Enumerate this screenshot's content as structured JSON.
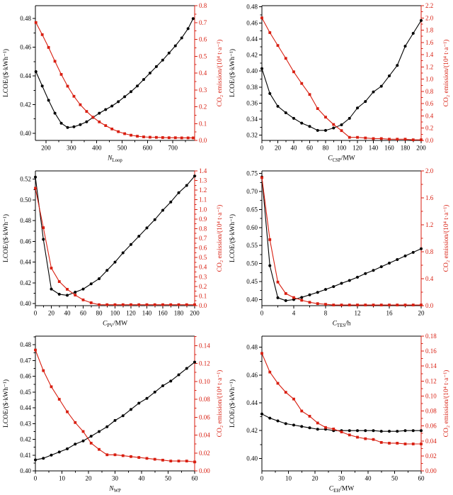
{
  "page": {
    "background": "#ffffff"
  },
  "colors": {
    "lcoe": "#000000",
    "co2": "#d81e10",
    "spine": "#000000"
  },
  "chart_data": [
    {
      "type": "line",
      "title": "",
      "xlabel": {
        "var": "N",
        "sub": "Loop",
        "unit": ""
      },
      "x_axis": {
        "range": [
          158,
          786
        ],
        "tick_values": [
          200,
          300,
          400,
          500,
          600,
          700
        ],
        "tick_labels": [
          "200",
          "300",
          "400",
          "500",
          "600",
          "700"
        ]
      },
      "left_axis": {
        "label": "LCOE/($·kWh⁻¹)",
        "range": [
          0.395,
          0.489
        ],
        "tick_values": [
          0.4,
          0.42,
          0.44,
          0.46,
          0.48
        ],
        "tick_labels": [
          "0.40",
          "0.42",
          "0.44",
          "0.46",
          "0.48"
        ]
      },
      "right_axis": {
        "label": "CO₂ emission/(10⁴ t·a⁻¹)",
        "range": [
          0,
          0.8
        ],
        "tick_values": [
          0,
          0.1,
          0.2,
          0.3,
          0.4,
          0.5,
          0.6,
          0.7,
          0.8
        ],
        "tick_labels": [
          "0.0",
          "0.1",
          "0.2",
          "0.3",
          "0.4",
          "0.5",
          "0.6",
          "0.7",
          "0.8"
        ]
      },
      "x": [
        160,
        185,
        210,
        235,
        260,
        285,
        310,
        335,
        360,
        385,
        410,
        435,
        460,
        485,
        510,
        535,
        560,
        585,
        610,
        635,
        660,
        685,
        710,
        735,
        760,
        780
      ],
      "series": [
        {
          "name": "LCOE",
          "axis": "left",
          "marker": "circle",
          "values": [
            0.443,
            0.433,
            0.423,
            0.414,
            0.407,
            0.404,
            0.4045,
            0.406,
            0.408,
            0.411,
            0.414,
            0.4165,
            0.419,
            0.422,
            0.4255,
            0.429,
            0.433,
            0.4375,
            0.442,
            0.4465,
            0.451,
            0.456,
            0.461,
            0.4665,
            0.473,
            0.48
          ]
        },
        {
          "name": "CO₂ emission",
          "axis": "right",
          "marker": "square",
          "values": [
            0.7,
            0.628,
            0.552,
            0.47,
            0.392,
            0.322,
            0.262,
            0.212,
            0.172,
            0.138,
            0.11,
            0.088,
            0.068,
            0.052,
            0.04,
            0.031,
            0.025,
            0.021,
            0.019,
            0.018,
            0.017,
            0.016,
            0.016,
            0.015,
            0.015,
            0.015
          ]
        }
      ]
    },
    {
      "type": "line",
      "title": "",
      "xlabel": {
        "var": "C",
        "sub": "CSP",
        "unit": "/MW"
      },
      "x_axis": {
        "range": [
          0,
          200
        ],
        "tick_values": [
          0,
          20,
          40,
          60,
          80,
          100,
          120,
          140,
          160,
          180,
          200
        ],
        "tick_labels": [
          "0",
          "20",
          "40",
          "60",
          "80",
          "100",
          "120",
          "140",
          "160",
          "180",
          "200"
        ]
      },
      "left_axis": {
        "label": "LCOE/($·kWh⁻¹)",
        "range": [
          0.3135,
          0.4815
        ],
        "tick_values": [
          0.32,
          0.34,
          0.36,
          0.38,
          0.4,
          0.42,
          0.44,
          0.46,
          0.48
        ],
        "tick_labels": [
          "0.32",
          "0.34",
          "0.36",
          "0.38",
          "0.40",
          "0.42",
          "0.44",
          "0.46",
          "0.48"
        ]
      },
      "right_axis": {
        "label": "CO₂ emission/(10⁴ t·a⁻¹)",
        "range": [
          0,
          2.2
        ],
        "tick_values": [
          0,
          0.2,
          0.4,
          0.6,
          0.8,
          1.0,
          1.2,
          1.4,
          1.6,
          1.8,
          2.0,
          2.2
        ],
        "tick_labels": [
          "0.0",
          "0.2",
          "0.4",
          "0.6",
          "0.8",
          "1.0",
          "1.2",
          "1.4",
          "1.6",
          "1.8",
          "2.0",
          "2.2"
        ]
      },
      "x": [
        0,
        10,
        20,
        30,
        40,
        50,
        60,
        70,
        80,
        90,
        100,
        110,
        120,
        130,
        140,
        150,
        160,
        170,
        180,
        190,
        200
      ],
      "series": [
        {
          "name": "LCOE",
          "axis": "left",
          "marker": "circle",
          "values": [
            0.403,
            0.372,
            0.356,
            0.348,
            0.341,
            0.335,
            0.331,
            0.326,
            0.326,
            0.329,
            0.333,
            0.341,
            0.354,
            0.362,
            0.374,
            0.381,
            0.394,
            0.407,
            0.431,
            0.447,
            0.463
          ]
        },
        {
          "name": "CO₂ emission",
          "axis": "right",
          "marker": "square",
          "values": [
            2.0,
            1.76,
            1.55,
            1.34,
            1.12,
            0.93,
            0.75,
            0.52,
            0.38,
            0.26,
            0.16,
            0.05,
            0.05,
            0.04,
            0.03,
            0.03,
            0.02,
            0.02,
            0.02,
            0.01,
            0.01
          ]
        }
      ]
    },
    {
      "type": "line",
      "title": "",
      "xlabel": {
        "var": "C",
        "sub": "PV",
        "unit": "/MW"
      },
      "x_axis": {
        "range": [
          0,
          200
        ],
        "tick_values": [
          0,
          20,
          40,
          60,
          80,
          100,
          120,
          140,
          160,
          180,
          200
        ],
        "tick_labels": [
          "0",
          "20",
          "40",
          "60",
          "80",
          "100",
          "120",
          "140",
          "160",
          "180",
          "200"
        ]
      },
      "left_axis": {
        "label": "LCOE/($·kWh⁻¹)",
        "range": [
          0.398,
          0.528
        ],
        "tick_values": [
          0.4,
          0.42,
          0.44,
          0.46,
          0.48,
          0.5,
          0.52
        ],
        "tick_labels": [
          "0.40",
          "0.42",
          "0.44",
          "0.46",
          "0.48",
          "0.50",
          "0.52"
        ]
      },
      "right_axis": {
        "label": "CO₂ emission/(10⁴ t·a⁻¹)",
        "range": [
          0,
          1.4
        ],
        "tick_values": [
          0,
          0.1,
          0.2,
          0.3,
          0.4,
          0.5,
          0.6,
          0.7,
          0.8,
          0.9,
          1.0,
          1.1,
          1.2,
          1.3,
          1.4
        ],
        "tick_labels": [
          "0.0",
          "0.1",
          "0.2",
          "0.3",
          "0.4",
          "0.5",
          "0.6",
          "0.7",
          "0.8",
          "0.9",
          "1.0",
          "1.1",
          "1.2",
          "1.3",
          "1.4"
        ]
      },
      "x": [
        0,
        10,
        20,
        30,
        40,
        50,
        60,
        70,
        80,
        90,
        100,
        110,
        120,
        130,
        140,
        150,
        160,
        170,
        180,
        190,
        200
      ],
      "series": [
        {
          "name": "LCOE",
          "axis": "left",
          "marker": "circle",
          "values": [
            0.522,
            0.462,
            0.414,
            0.409,
            0.408,
            0.411,
            0.414,
            0.419,
            0.424,
            0.432,
            0.44,
            0.449,
            0.457,
            0.465,
            0.473,
            0.481,
            0.49,
            0.498,
            0.507,
            0.514,
            0.523
          ]
        },
        {
          "name": "CO₂ emission",
          "axis": "right",
          "marker": "square",
          "values": [
            1.22,
            0.81,
            0.39,
            0.25,
            0.17,
            0.11,
            0.06,
            0.03,
            0.01,
            0.01,
            0.01,
            0.01,
            0.01,
            0.01,
            0.01,
            0.01,
            0.01,
            0.01,
            0.01,
            0.01,
            0.01
          ]
        }
      ]
    },
    {
      "type": "line",
      "title": "",
      "xlabel": {
        "var": "C",
        "sub": "TES",
        "unit": "/h"
      },
      "x_axis": {
        "range": [
          0,
          20
        ],
        "tick_values": [
          0,
          4,
          8,
          12,
          16,
          20
        ],
        "tick_labels": [
          "0",
          "4",
          "8",
          "12",
          "16",
          "20"
        ]
      },
      "left_axis": {
        "label": "LCOE/($·kWh⁻¹)",
        "range": [
          0.383,
          0.757
        ],
        "tick_values": [
          0.4,
          0.45,
          0.5,
          0.55,
          0.6,
          0.65,
          0.7,
          0.75
        ],
        "tick_labels": [
          "0.40",
          "0.45",
          "0.50",
          "0.55",
          "0.60",
          "0.65",
          "0.70",
          "0.75"
        ]
      },
      "right_axis": {
        "label": "CO₂ emission/(10⁴ t·a⁻¹)",
        "range": [
          0,
          2.0
        ],
        "tick_values": [
          0,
          0.4,
          0.8,
          1.2,
          1.6,
          2.0
        ],
        "tick_labels": [
          "0.0",
          "0.4",
          "0.8",
          "1.2",
          "1.6",
          "2.0"
        ]
      },
      "x": [
        0,
        1,
        2,
        3,
        4,
        5,
        6,
        7,
        8,
        9,
        10,
        11,
        12,
        13,
        14,
        15,
        16,
        17,
        18,
        19,
        20
      ],
      "series": [
        {
          "name": "LCOE",
          "axis": "left",
          "marker": "circle",
          "values": [
            0.74,
            0.494,
            0.405,
            0.397,
            0.4,
            0.406,
            0.413,
            0.42,
            0.428,
            0.436,
            0.445,
            0.453,
            0.462,
            0.472,
            0.481,
            0.491,
            0.501,
            0.511,
            0.521,
            0.531,
            0.541
          ]
        },
        {
          "name": "CO₂ emission",
          "axis": "right",
          "marker": "square",
          "values": [
            1.9,
            0.98,
            0.35,
            0.18,
            0.12,
            0.08,
            0.05,
            0.03,
            0.02,
            0.01,
            0.01,
            0.01,
            0.01,
            0.01,
            0.01,
            0.01,
            0.01,
            0.01,
            0.01,
            0.01,
            0.01
          ]
        }
      ]
    },
    {
      "type": "line",
      "title": "",
      "xlabel": {
        "var": "N",
        "sub": "WP",
        "unit": ""
      },
      "x_axis": {
        "range": [
          0,
          60
        ],
        "tick_values": [
          0,
          10,
          20,
          30,
          40,
          50,
          60
        ],
        "tick_labels": [
          "0",
          "10",
          "20",
          "30",
          "40",
          "50",
          "60"
        ]
      },
      "left_axis": {
        "label": "LCOE/($·kWh⁻¹)",
        "range": [
          0.4,
          0.4855
        ],
        "tick_values": [
          0.4,
          0.41,
          0.42,
          0.43,
          0.44,
          0.45,
          0.46,
          0.47,
          0.48
        ],
        "tick_labels": [
          "0.40",
          "0.41",
          "0.42",
          "0.43",
          "0.44",
          "0.45",
          "0.46",
          "0.47",
          "0.48"
        ]
      },
      "right_axis": {
        "label": "CO₂ emission/(10⁴ t·a⁻¹)",
        "range": [
          0,
          0.1505
        ],
        "tick_values": [
          0,
          0.02,
          0.04,
          0.06,
          0.08,
          0.1,
          0.12,
          0.14
        ],
        "tick_labels": [
          "0.00",
          "0.02",
          "0.04",
          "0.06",
          "0.08",
          "0.10",
          "0.12",
          "0.14"
        ]
      },
      "x": [
        0,
        3,
        6,
        9,
        12,
        15,
        18,
        21,
        24,
        27,
        30,
        33,
        36,
        39,
        42,
        45,
        48,
        51,
        54,
        57,
        60
      ],
      "series": [
        {
          "name": "LCOE",
          "axis": "left",
          "marker": "circle",
          "values": [
            0.407,
            0.408,
            0.41,
            0.412,
            0.414,
            0.417,
            0.419,
            0.422,
            0.425,
            0.428,
            0.432,
            0.435,
            0.439,
            0.443,
            0.446,
            0.45,
            0.454,
            0.457,
            0.461,
            0.465,
            0.469
          ]
        },
        {
          "name": "CO₂ emission",
          "axis": "right",
          "marker": "square",
          "values": [
            0.135,
            0.112,
            0.094,
            0.08,
            0.066,
            0.054,
            0.044,
            0.031,
            0.024,
            0.018,
            0.018,
            0.017,
            0.016,
            0.015,
            0.014,
            0.013,
            0.012,
            0.011,
            0.011,
            0.011,
            0.01
          ]
        }
      ]
    },
    {
      "type": "line",
      "title": "",
      "xlabel": {
        "var": "C",
        "sub": "EH",
        "unit": "/MW"
      },
      "x_axis": {
        "range": [
          0,
          60
        ],
        "tick_values": [
          0,
          10,
          20,
          30,
          40,
          50,
          60
        ],
        "tick_labels": [
          "0",
          "10",
          "20",
          "30",
          "40",
          "50",
          "60"
        ]
      },
      "left_axis": {
        "label": "LCOE/($·kWh⁻¹)",
        "range": [
          0.391,
          0.488
        ],
        "tick_values": [
          0.4,
          0.42,
          0.44,
          0.46,
          0.48
        ],
        "tick_labels": [
          "0.40",
          "0.42",
          "0.44",
          "0.46",
          "0.48"
        ]
      },
      "right_axis": {
        "label": "CO₂ emission/(10⁴ t·a⁻¹)",
        "range": [
          0,
          0.18
        ],
        "tick_values": [
          0,
          0.02,
          0.04,
          0.06,
          0.08,
          0.1,
          0.12,
          0.14,
          0.16,
          0.18
        ],
        "tick_labels": [
          "0.00",
          "0.02",
          "0.04",
          "0.06",
          "0.08",
          "0.10",
          "0.12",
          "0.14",
          "0.16",
          "0.18"
        ]
      },
      "x": [
        0,
        3,
        6,
        9,
        12,
        15,
        18,
        21,
        24,
        27,
        30,
        33,
        36,
        39,
        42,
        45,
        48,
        51,
        54,
        57,
        60
      ],
      "series": [
        {
          "name": "LCOE",
          "axis": "left",
          "marker": "circle",
          "values": [
            0.432,
            0.429,
            0.427,
            0.425,
            0.424,
            0.423,
            0.422,
            0.421,
            0.421,
            0.42,
            0.42,
            0.42,
            0.42,
            0.42,
            0.42,
            0.4195,
            0.4195,
            0.4195,
            0.42,
            0.42,
            0.42
          ]
        },
        {
          "name": "CO₂ emission",
          "axis": "right",
          "marker": "square",
          "values": [
            0.157,
            0.132,
            0.117,
            0.105,
            0.096,
            0.08,
            0.073,
            0.064,
            0.058,
            0.056,
            0.052,
            0.048,
            0.045,
            0.043,
            0.042,
            0.038,
            0.037,
            0.037,
            0.036,
            0.036,
            0.036
          ]
        }
      ]
    }
  ]
}
